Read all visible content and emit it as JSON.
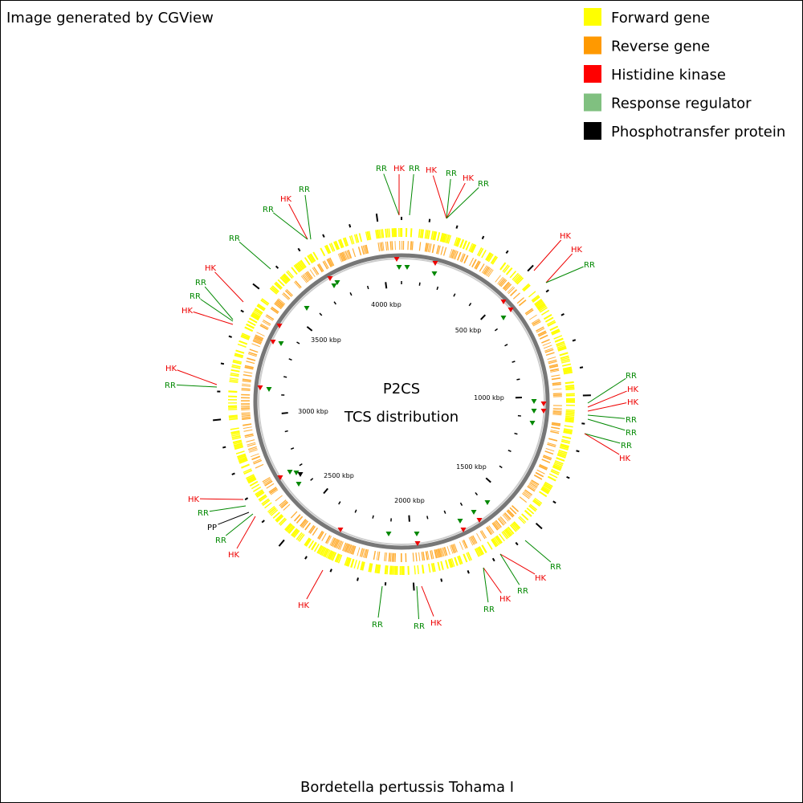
{
  "header": "Image generated by CGView",
  "legend": [
    {
      "label": "Forward gene",
      "color": "#ffff00"
    },
    {
      "label": "Reverse gene",
      "color": "#ff9900"
    },
    {
      "label": "Histidine kinase",
      "color": "#ff0000"
    },
    {
      "label": "Response regulator",
      "color": "#80c080"
    },
    {
      "label": "Phosphotransfer protein",
      "color": "#000000"
    }
  ],
  "center": [
    "P2CS",
    "TCS distribution"
  ],
  "ticks": [
    "500 kbp",
    "1000 kbp",
    "1500 kbp",
    "2000 kbp",
    "2500 kbp",
    "3000 kbp",
    "3500 kbp",
    "4000 kbp"
  ],
  "features": [
    {
      "label": "RR"
    },
    {
      "label": "HK"
    },
    {
      "label": "RR"
    },
    {
      "label": "HK"
    },
    {
      "label": "RR"
    },
    {
      "label": "HK"
    },
    {
      "label": "RR"
    },
    {
      "label": "HK"
    },
    {
      "label": "HK"
    },
    {
      "label": "RR"
    },
    {
      "label": "RR"
    },
    {
      "label": "HK"
    },
    {
      "label": "HK"
    },
    {
      "label": "RR"
    },
    {
      "label": "RR"
    },
    {
      "label": "RR"
    },
    {
      "label": "HK"
    },
    {
      "label": "RR"
    },
    {
      "label": "HK"
    },
    {
      "label": "RR"
    },
    {
      "label": "HK"
    },
    {
      "label": "RR"
    },
    {
      "label": "HK"
    },
    {
      "label": "RR"
    },
    {
      "label": "RR"
    },
    {
      "label": "HK"
    },
    {
      "label": "HK"
    },
    {
      "label": "RR"
    },
    {
      "label": "PP"
    },
    {
      "label": "RR"
    },
    {
      "label": "HK"
    },
    {
      "label": "HK"
    },
    {
      "label": "RR"
    },
    {
      "label": "HK"
    },
    {
      "label": "RR"
    },
    {
      "label": "RR"
    },
    {
      "label": "HK"
    },
    {
      "label": "RR"
    },
    {
      "label": "HK"
    },
    {
      "label": "RR"
    },
    {
      "label": "RR"
    }
  ],
  "footer": "Bordetella pertussis Tohama I"
}
